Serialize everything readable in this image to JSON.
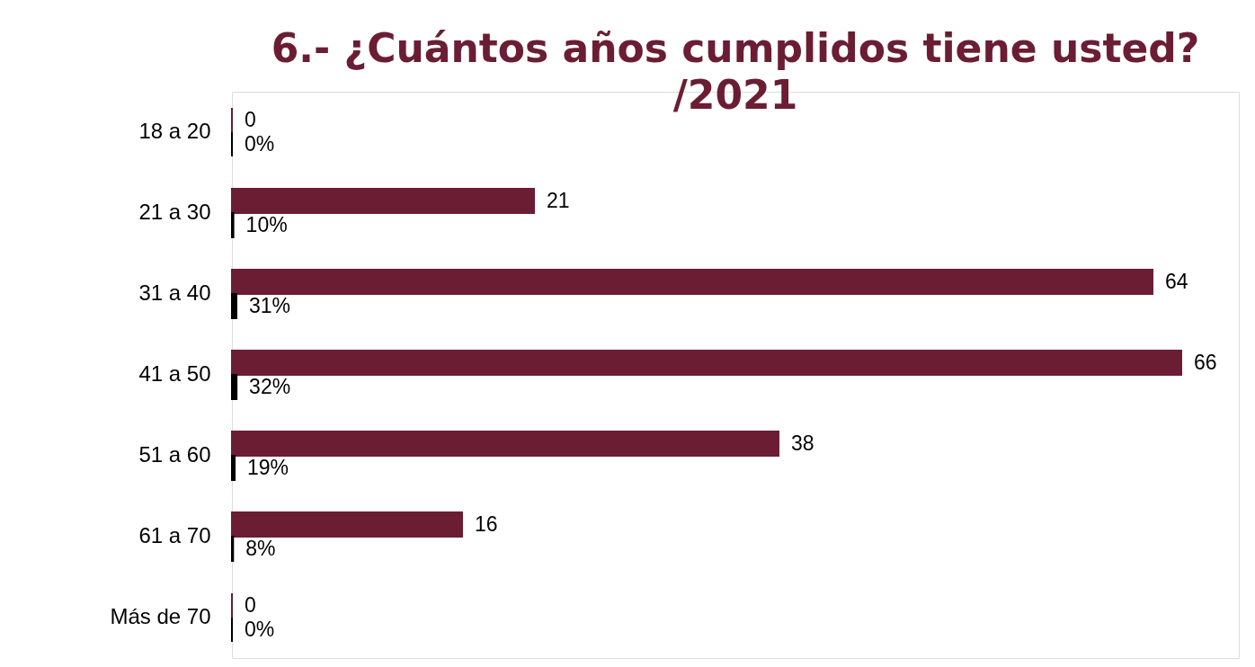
{
  "chart_data": {
    "type": "bar",
    "orientation": "horizontal",
    "title": "6.- ¿Cuántos años cumplidos tiene usted?\n/2021",
    "categories": [
      "18 a 20",
      "21 a 30",
      "31 a 40",
      "41 a 50",
      "51 a 60",
      "61 a 70",
      "Más de 70"
    ],
    "series": [
      {
        "color": "#6b1d33",
        "values": [
          0,
          21,
          64,
          66,
          38,
          16,
          0
        ],
        "value_labels": [
          "0",
          "21",
          "64",
          "66",
          "38",
          "16",
          "0"
        ]
      },
      {
        "color": "#000000",
        "values": [
          0,
          0.1,
          0.31,
          0.32,
          0.19,
          0.08,
          0
        ],
        "value_labels": [
          "0%",
          "10%",
          "31%",
          "32%",
          "19%",
          "8%",
          "0%"
        ]
      }
    ],
    "xlim": [
      0,
      70
    ],
    "tick_labels": "y"
  }
}
